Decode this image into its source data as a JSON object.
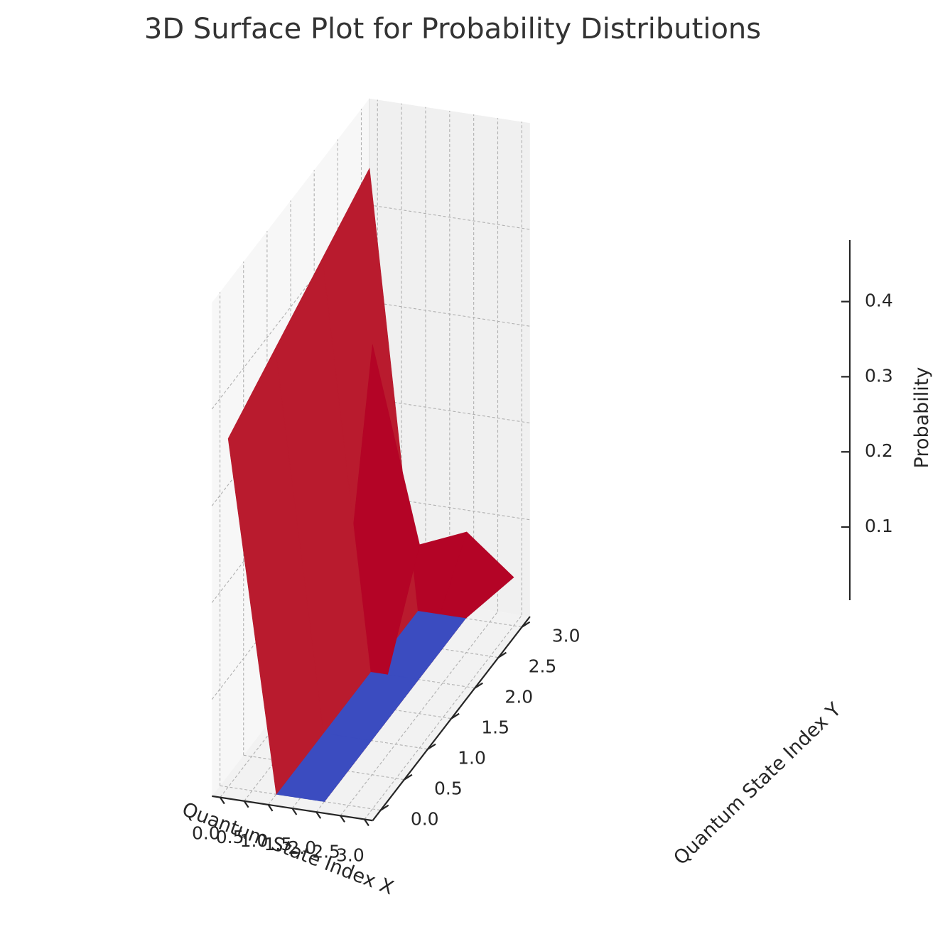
{
  "chart_data": {
    "type": "surface3d",
    "title": "3D Surface Plot for Probability Distributions",
    "xlabel": "Quantum State Index X",
    "ylabel": "Quantum State Index Y",
    "zlabel": "Probability",
    "x": [
      0,
      1,
      2,
      3
    ],
    "y": [
      0,
      1,
      2,
      3
    ],
    "z": [
      [
        0.36,
        0.0,
        0.0,
        0.48
      ],
      [
        0.39,
        0.0,
        0.0,
        0.21
      ],
      [
        0.42,
        0.0,
        0.0,
        0.16
      ],
      [
        0.45,
        0.0,
        0.0,
        0.05
      ]
    ],
    "xticks": [
      "0.0",
      "0.5",
      "1.0",
      "1.5",
      "2.0",
      "2.5",
      "3.0"
    ],
    "yticks": [
      "0.0",
      "0.5",
      "1.0",
      "1.5",
      "2.0",
      "2.5",
      "3.0"
    ],
    "zticks": [
      "0.1",
      "0.2",
      "0.3",
      "0.4"
    ],
    "xlim": [
      0,
      3
    ],
    "ylim": [
      0,
      3
    ],
    "zlim": [
      0,
      0.48
    ],
    "colormap": "coolwarm",
    "colors": {
      "low": "#3b4cc0",
      "high": "#b40426",
      "mid_high": "#b91b2e"
    },
    "grid": true
  }
}
